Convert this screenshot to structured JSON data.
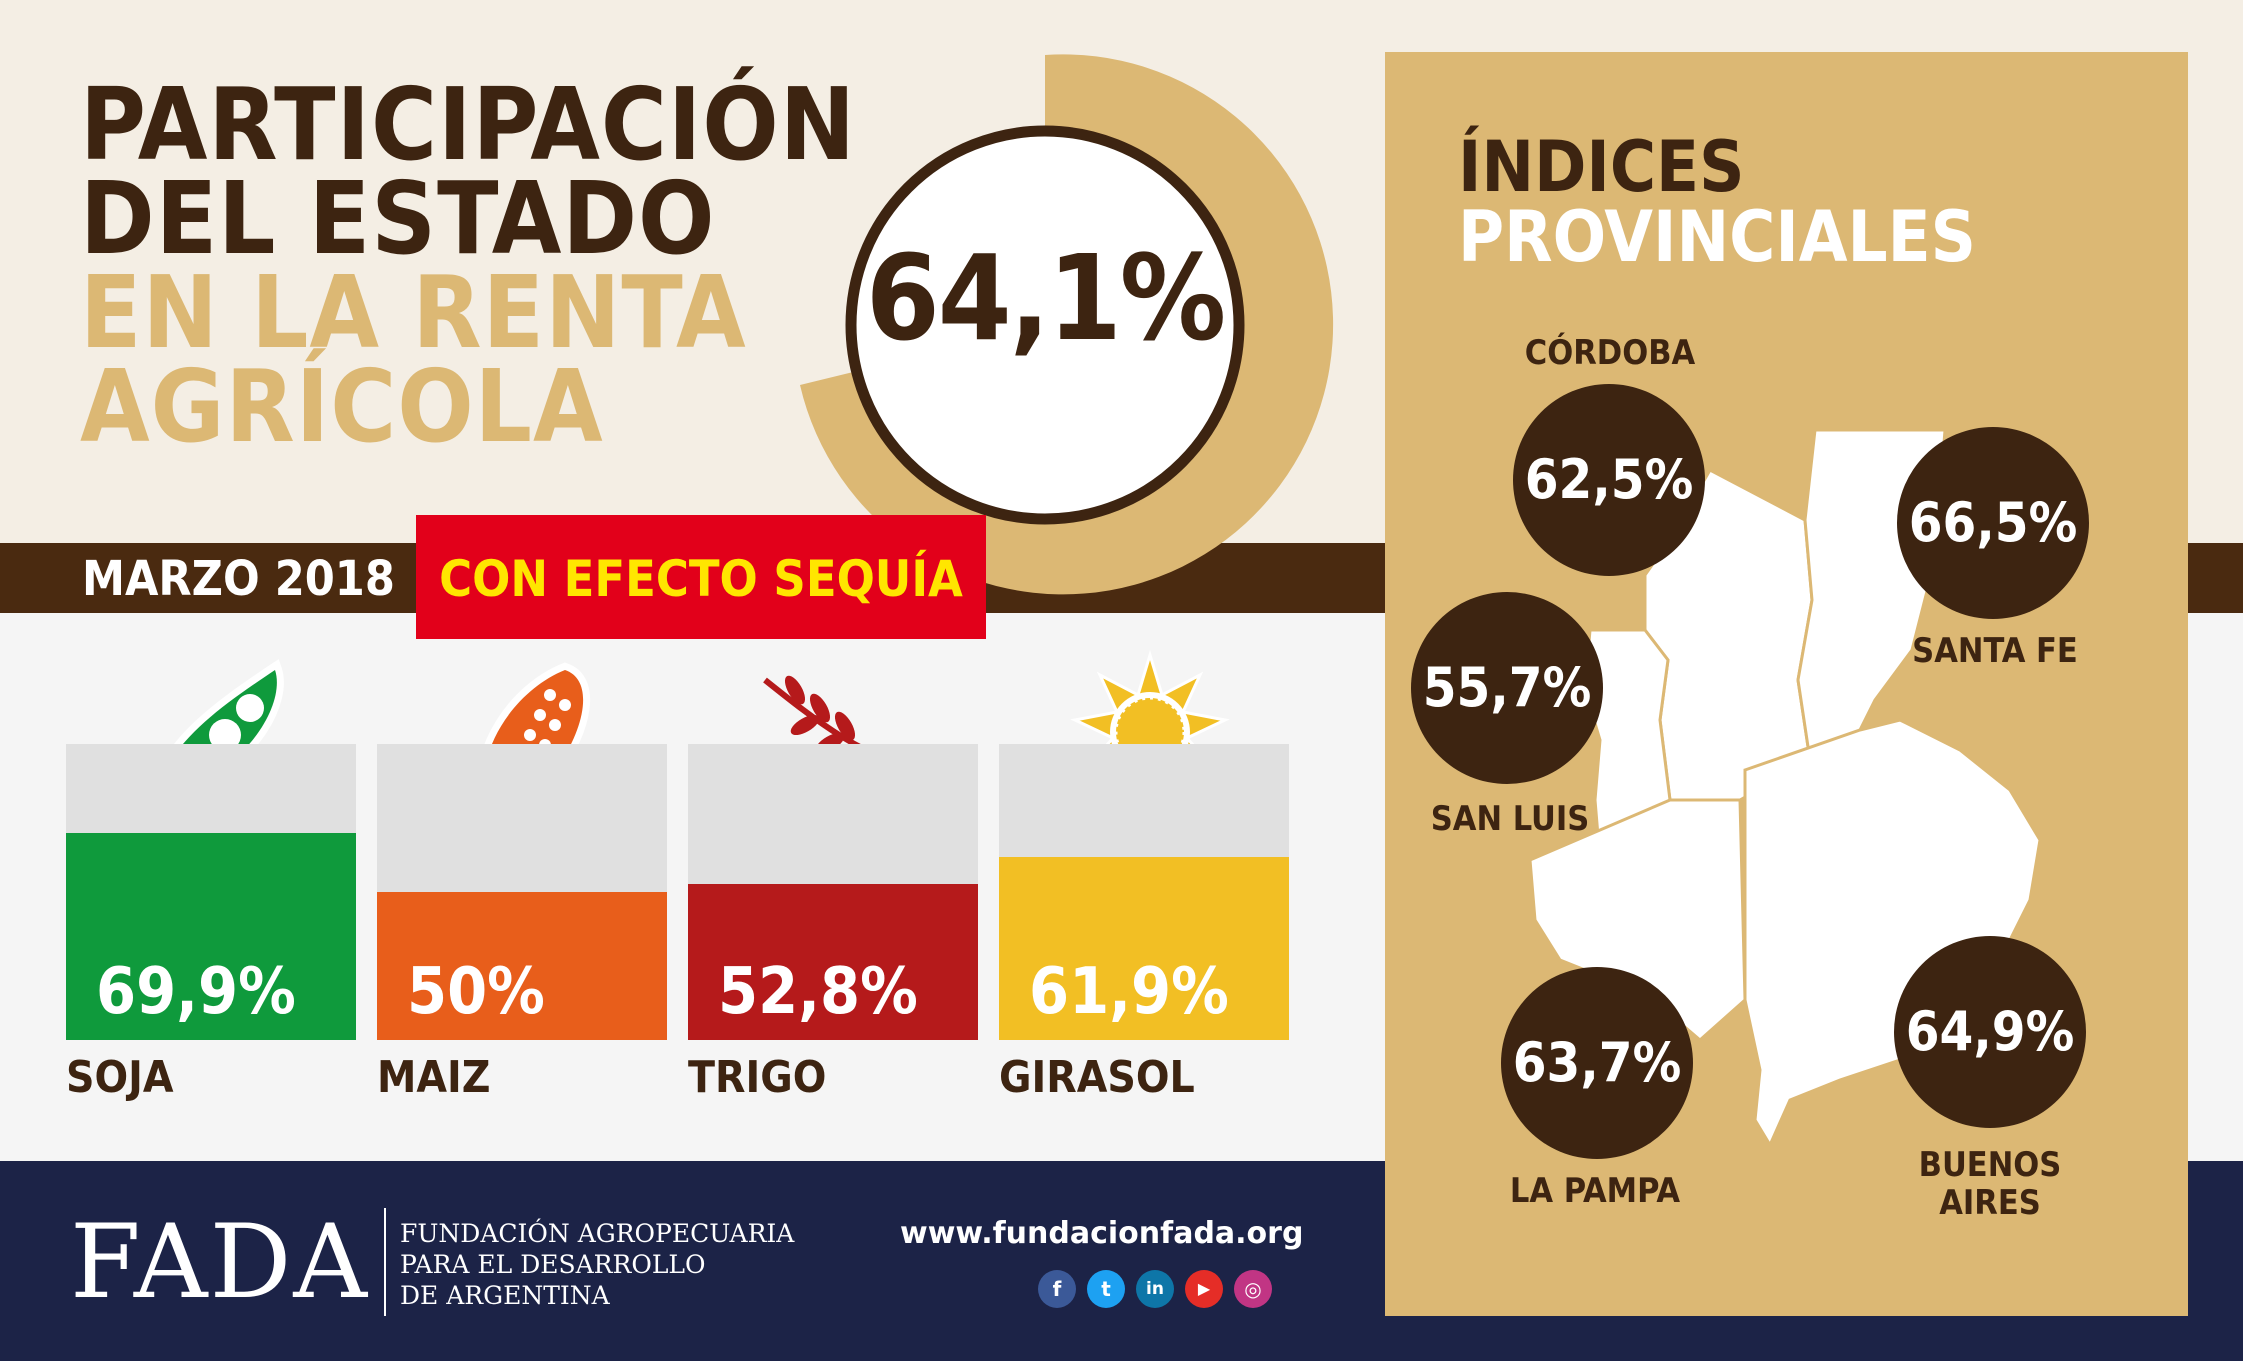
{
  "title": {
    "line1": "PARTICIPACIÓN",
    "line2": "DEL ESTADO",
    "line3": "EN LA RENTA",
    "line4": "AGRÍCOLA"
  },
  "main_value": "64,1%",
  "date_label": "MARZO 2018",
  "tag_label": "CON EFECTO SEQUÍA",
  "panel": {
    "title_line1": "ÍNDICES",
    "title_line2": "PROVINCIALES"
  },
  "footer": {
    "logo": "FADA",
    "org_line1": "FUNDACIÓN AGROPECUARIA",
    "org_line2": "PARA EL DESARROLLO",
    "org_line3": "DE ARGENTINA",
    "url": "www.fundacionfada.org",
    "social": [
      "f",
      "t",
      "in",
      "▶",
      "◎"
    ]
  },
  "colors": {
    "brown": "#3d2411",
    "gold": "#dcb874",
    "red": "#e2001a",
    "yellow_text": "#ffe600",
    "soja": "#0f9a3c",
    "maiz": "#e85e1b",
    "trigo": "#b51a1b",
    "girasol": "#f2bf24",
    "navy": "#1c2347"
  },
  "chart_data": [
    {
      "type": "bar",
      "categories": [
        "SOJA",
        "MAIZ",
        "TRIGO",
        "GIRASOL"
      ],
      "values": [
        69.9,
        50,
        52.8,
        61.9
      ],
      "value_labels": [
        "69,9%",
        "50%",
        "52,8%",
        "61,9%"
      ],
      "ylim": [
        0,
        100
      ],
      "colors": [
        "#0f9a3c",
        "#e85e1b",
        "#b51a1b",
        "#f2bf24"
      ]
    },
    {
      "type": "table",
      "rows": [
        {
          "province": "CÓRDOBA",
          "value": 62.5,
          "label": "62,5%"
        },
        {
          "province": "SANTA FE",
          "value": 66.5,
          "label": "66,5%"
        },
        {
          "province": "SAN LUIS",
          "value": 55.7,
          "label": "55,7%"
        },
        {
          "province": "LA PAMPA",
          "value": 63.7,
          "label": "63,7%"
        },
        {
          "province": "BUENOS AIRES",
          "value": 64.9,
          "label": "64,9%"
        }
      ]
    }
  ]
}
